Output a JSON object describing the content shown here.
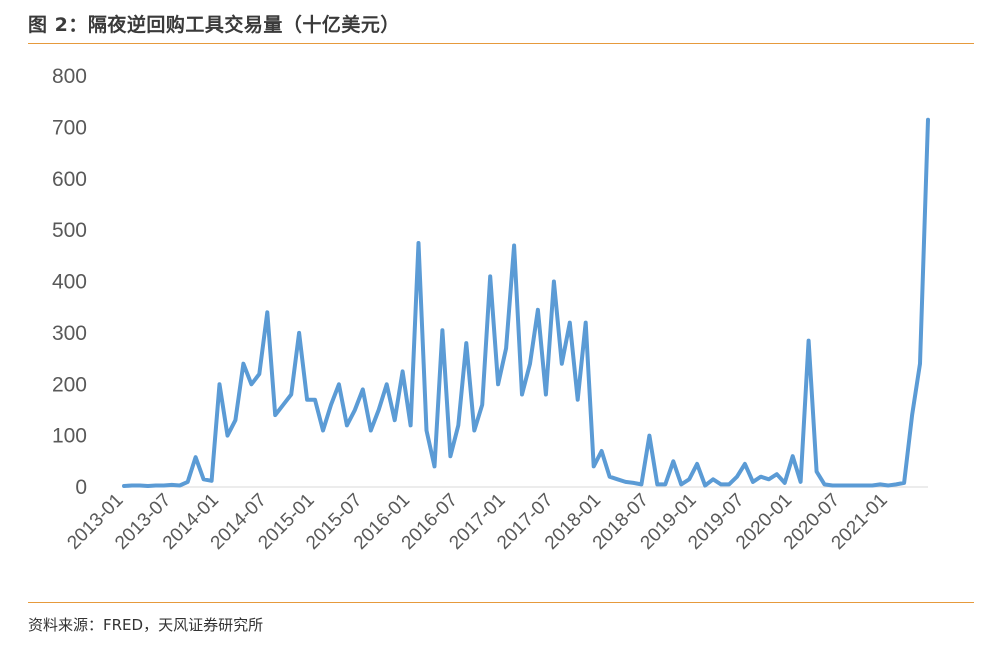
{
  "header": {
    "title": "图 2：隔夜逆回购工具交易量（十亿美元）"
  },
  "footer": {
    "source": "资料来源：FRED，天风证券研究所"
  },
  "colors": {
    "line": "#5b9bd5",
    "rule": "#e69a3c",
    "axis_text": "#595959"
  },
  "chart_data": {
    "type": "line",
    "title": "图 2：隔夜逆回购工具交易量（十亿美元）",
    "xlabel": "",
    "ylabel": "",
    "ylim": [
      0,
      800
    ],
    "yticks": [
      0,
      100,
      200,
      300,
      400,
      500,
      600,
      700,
      800
    ],
    "xlim": [
      "2013-01",
      "2021-06"
    ],
    "xticks": [
      "2013-01",
      "2013-07",
      "2014-01",
      "2014-07",
      "2015-01",
      "2015-07",
      "2016-01",
      "2016-07",
      "2017-01",
      "2017-07",
      "2018-01",
      "2018-07",
      "2019-01",
      "2019-07",
      "2020-01",
      "2020-07",
      "2021-01"
    ],
    "grid": false,
    "legend": "none",
    "series": [
      {
        "name": "",
        "x": [
          "2013-01",
          "2013-02",
          "2013-03",
          "2013-04",
          "2013-05",
          "2013-06",
          "2013-07",
          "2013-08",
          "2013-09",
          "2013-10",
          "2013-11",
          "2013-12",
          "2014-01",
          "2014-02",
          "2014-03",
          "2014-04",
          "2014-05",
          "2014-06",
          "2014-07",
          "2014-08",
          "2014-09",
          "2014-10",
          "2014-11",
          "2014-12",
          "2015-01",
          "2015-02",
          "2015-03",
          "2015-04",
          "2015-05",
          "2015-06",
          "2015-07",
          "2015-08",
          "2015-09",
          "2015-10",
          "2015-11",
          "2015-12",
          "2016-01",
          "2016-02",
          "2016-03",
          "2016-04",
          "2016-05",
          "2016-06",
          "2016-07",
          "2016-08",
          "2016-09",
          "2016-10",
          "2016-11",
          "2016-12",
          "2017-01",
          "2017-02",
          "2017-03",
          "2017-04",
          "2017-05",
          "2017-06",
          "2017-07",
          "2017-08",
          "2017-09",
          "2017-10",
          "2017-11",
          "2017-12",
          "2018-01",
          "2018-02",
          "2018-03",
          "2018-04",
          "2018-05",
          "2018-06",
          "2018-07",
          "2018-08",
          "2018-09",
          "2018-10",
          "2018-11",
          "2018-12",
          "2019-01",
          "2019-02",
          "2019-03",
          "2019-04",
          "2019-05",
          "2019-06",
          "2019-07",
          "2019-08",
          "2019-09",
          "2019-10",
          "2019-11",
          "2019-12",
          "2020-01",
          "2020-02",
          "2020-03",
          "2020-04",
          "2020-05",
          "2020-06",
          "2020-07",
          "2020-08",
          "2020-09",
          "2020-10",
          "2020-11",
          "2020-12",
          "2021-01",
          "2021-02",
          "2021-03",
          "2021-04",
          "2021-05",
          "2021-06"
        ],
        "values": [
          2,
          3,
          3,
          2,
          3,
          3,
          4,
          3,
          10,
          58,
          15,
          12,
          200,
          100,
          130,
          240,
          200,
          220,
          340,
          140,
          160,
          180,
          300,
          170,
          170,
          110,
          160,
          200,
          120,
          150,
          190,
          110,
          150,
          200,
          130,
          225,
          120,
          475,
          110,
          40,
          305,
          60,
          120,
          280,
          110,
          160,
          410,
          200,
          270,
          470,
          180,
          240,
          345,
          180,
          400,
          240,
          320,
          170,
          320,
          40,
          70,
          20,
          15,
          10,
          8,
          5,
          100,
          5,
          5,
          50,
          5,
          15,
          45,
          3,
          15,
          5,
          5,
          20,
          45,
          10,
          20,
          15,
          25,
          8,
          60,
          10,
          285,
          30,
          5,
          3,
          3,
          3,
          3,
          3,
          3,
          5,
          3,
          5,
          8,
          140,
          240,
          715
        ]
      }
    ]
  }
}
